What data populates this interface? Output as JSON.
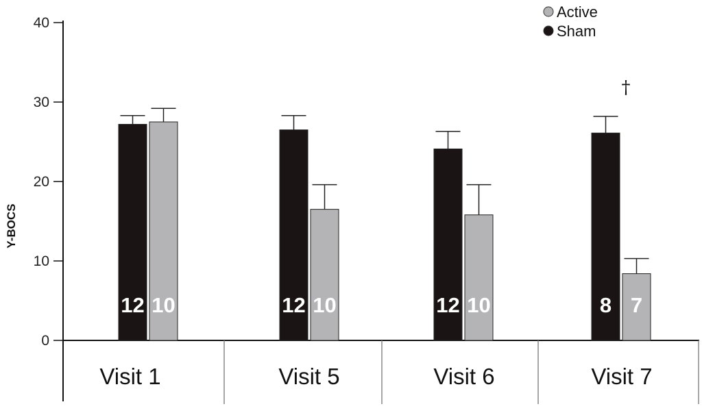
{
  "chart_data": {
    "type": "bar",
    "title": "",
    "xlabel": "",
    "ylabel": "Y-BOCS",
    "ylim": [
      0,
      40
    ],
    "yticks": [
      "0",
      "10",
      "20",
      "30",
      "40"
    ],
    "yticks_values": [
      0,
      10,
      20,
      30,
      40
    ],
    "categories": [
      "Visit 1",
      "Visit 5",
      "Visit 6",
      "Visit 7"
    ],
    "series": [
      {
        "name": "Sham",
        "color": "#1a1414",
        "values": [
          27.2,
          26.5,
          24.1,
          26.1
        ],
        "error": [
          1.1,
          1.8,
          2.2,
          2.1
        ],
        "n_labels": [
          "12",
          "12",
          "12",
          "8"
        ]
      },
      {
        "name": "Active",
        "color": "#b4b4b6",
        "values": [
          27.5,
          16.5,
          15.8,
          8.4
        ],
        "error": [
          1.7,
          3.1,
          3.8,
          1.9
        ],
        "n_labels": [
          "10",
          "10",
          "10",
          "7"
        ]
      }
    ],
    "legend": {
      "placement": "top-right",
      "entries": [
        {
          "label": "Active",
          "color": "#b4b4b6"
        },
        {
          "label": "Sham",
          "color": "#1a1414"
        }
      ]
    },
    "annotations": [
      {
        "text": "†",
        "category": "Visit 7"
      }
    ],
    "grid": false
  }
}
